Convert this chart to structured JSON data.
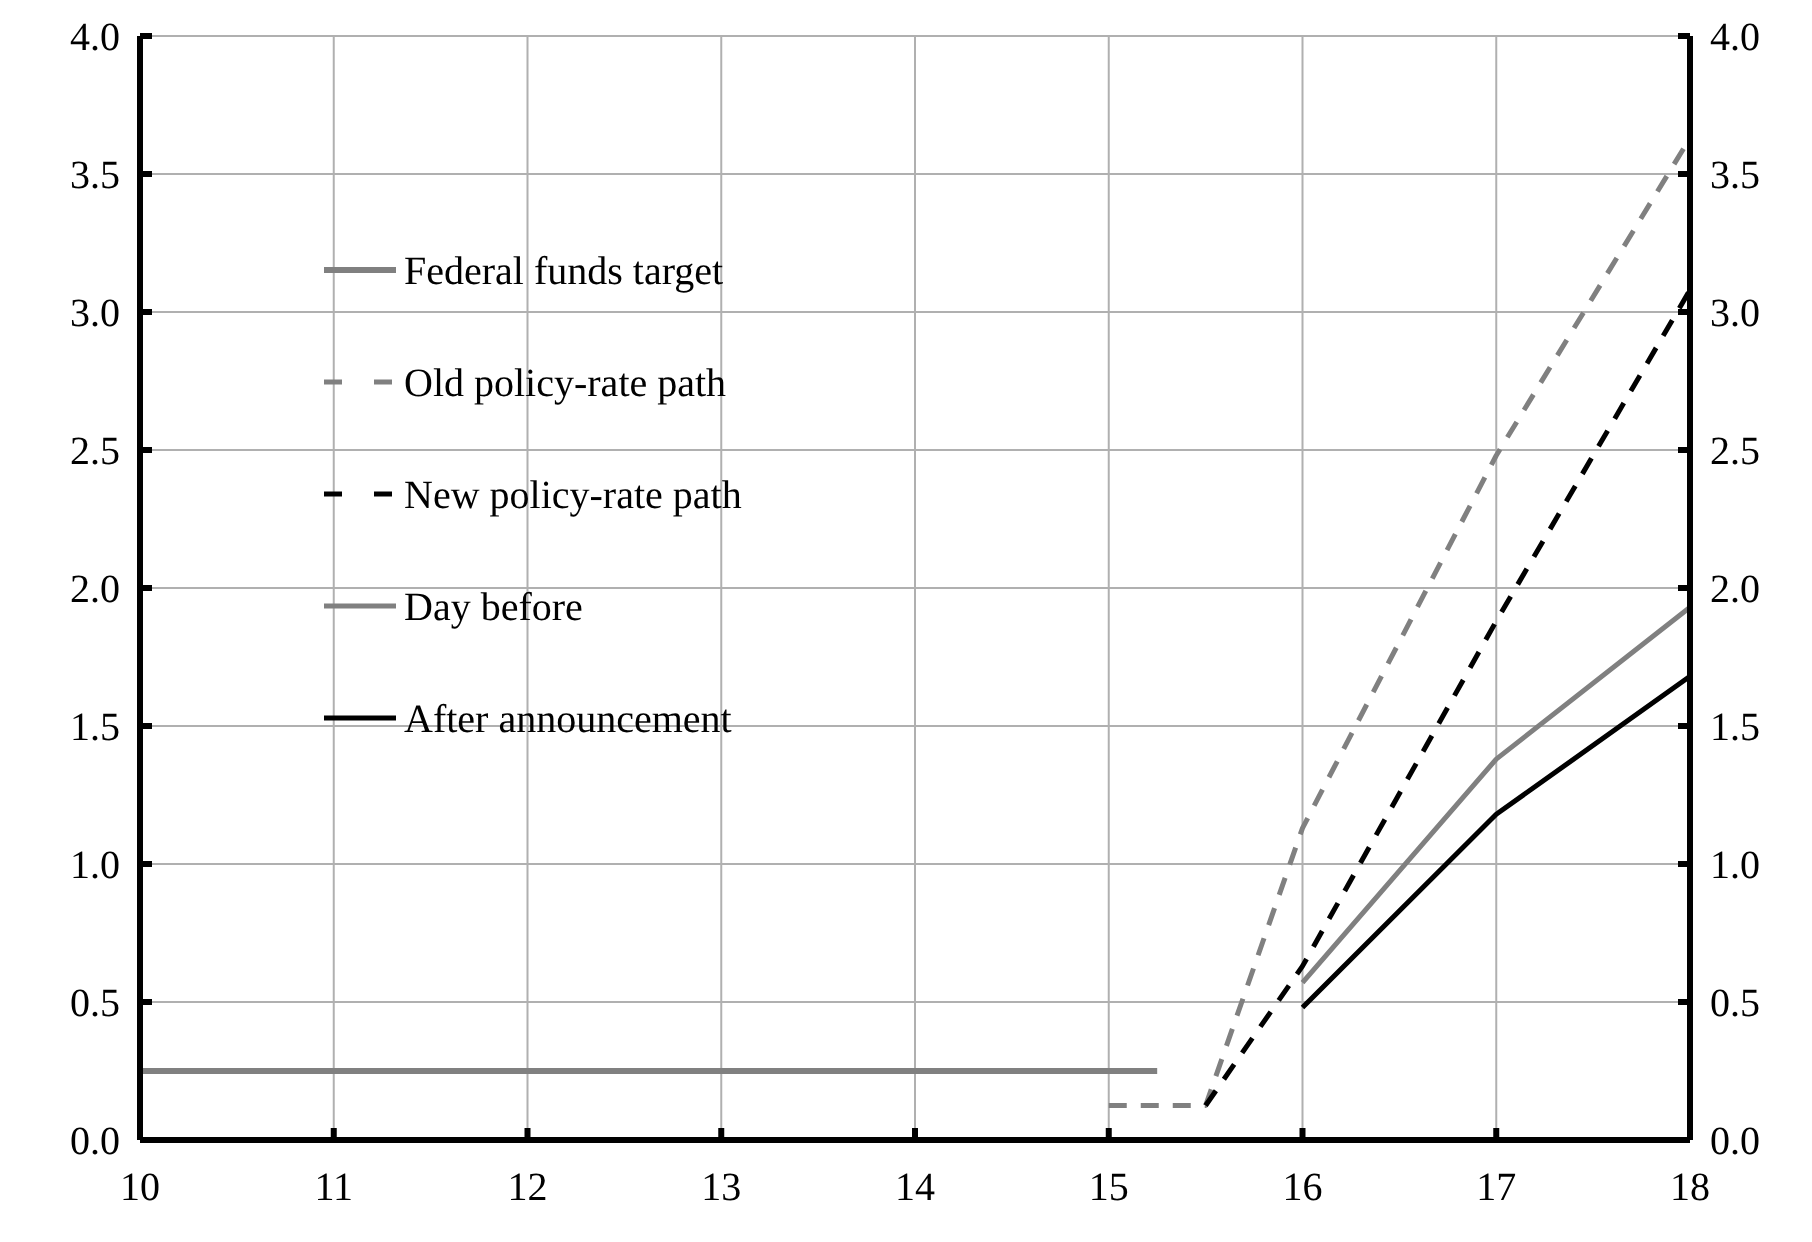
{
  "chart_data": {
    "type": "line",
    "xlim": [
      10,
      18
    ],
    "xticks": [
      10,
      11,
      12,
      13,
      14,
      15,
      16,
      17,
      18
    ],
    "ylim": [
      0,
      4
    ],
    "yticks": [
      {
        "value": 0,
        "label": "0.0"
      },
      {
        "value": 0.5,
        "label": "0.5"
      },
      {
        "value": 1,
        "label": "1.0"
      },
      {
        "value": 1.5,
        "label": "1.5"
      },
      {
        "value": 2,
        "label": "2.0"
      },
      {
        "value": 2.5,
        "label": "2.5"
      },
      {
        "value": 3,
        "label": "3.0"
      },
      {
        "value": 3.5,
        "label": "3.5"
      },
      {
        "value": 4,
        "label": "4.0"
      }
    ],
    "y2lim": [
      0,
      4
    ],
    "y2ticks": [
      {
        "value": 0,
        "label": "0.0"
      },
      {
        "value": 0.5,
        "label": "0.5"
      },
      {
        "value": 1,
        "label": "1.0"
      },
      {
        "value": 1.5,
        "label": "1.5"
      },
      {
        "value": 2,
        "label": "2.0"
      },
      {
        "value": 2.5,
        "label": "2.5"
      },
      {
        "value": 3,
        "label": "3.0"
      },
      {
        "value": 3.5,
        "label": "3.5"
      },
      {
        "value": 4,
        "label": "4.0"
      }
    ],
    "grid": true,
    "legend": "top left",
    "series": [
      {
        "name": "Federal funds target",
        "color": "#808080",
        "line_style": "solid",
        "x": [
          10,
          15.25
        ],
        "values": [
          0.25,
          0.25
        ]
      },
      {
        "name": "Old policy-rate path",
        "color": "#808080",
        "line_style": "dashed",
        "x": [
          15,
          15.5,
          16,
          17,
          18
        ],
        "values": [
          0.125,
          0.125,
          1.13,
          2.48,
          3.63
        ]
      },
      {
        "name": "New policy-rate path",
        "color": "#000000",
        "line_style": "dashed",
        "x": [
          15.5,
          16,
          17,
          18
        ],
        "values": [
          0.125,
          0.63,
          1.88,
          3.08
        ]
      },
      {
        "name": "Day before",
        "color": "#808080",
        "line_style": "solid",
        "x": [
          16,
          17,
          18
        ],
        "values": [
          0.57,
          1.38,
          1.93
        ]
      },
      {
        "name": "After announcement",
        "color": "#000000",
        "line_style": "solid",
        "x": [
          16,
          17,
          18
        ],
        "values": [
          0.48,
          1.18,
          1.68
        ]
      }
    ]
  }
}
